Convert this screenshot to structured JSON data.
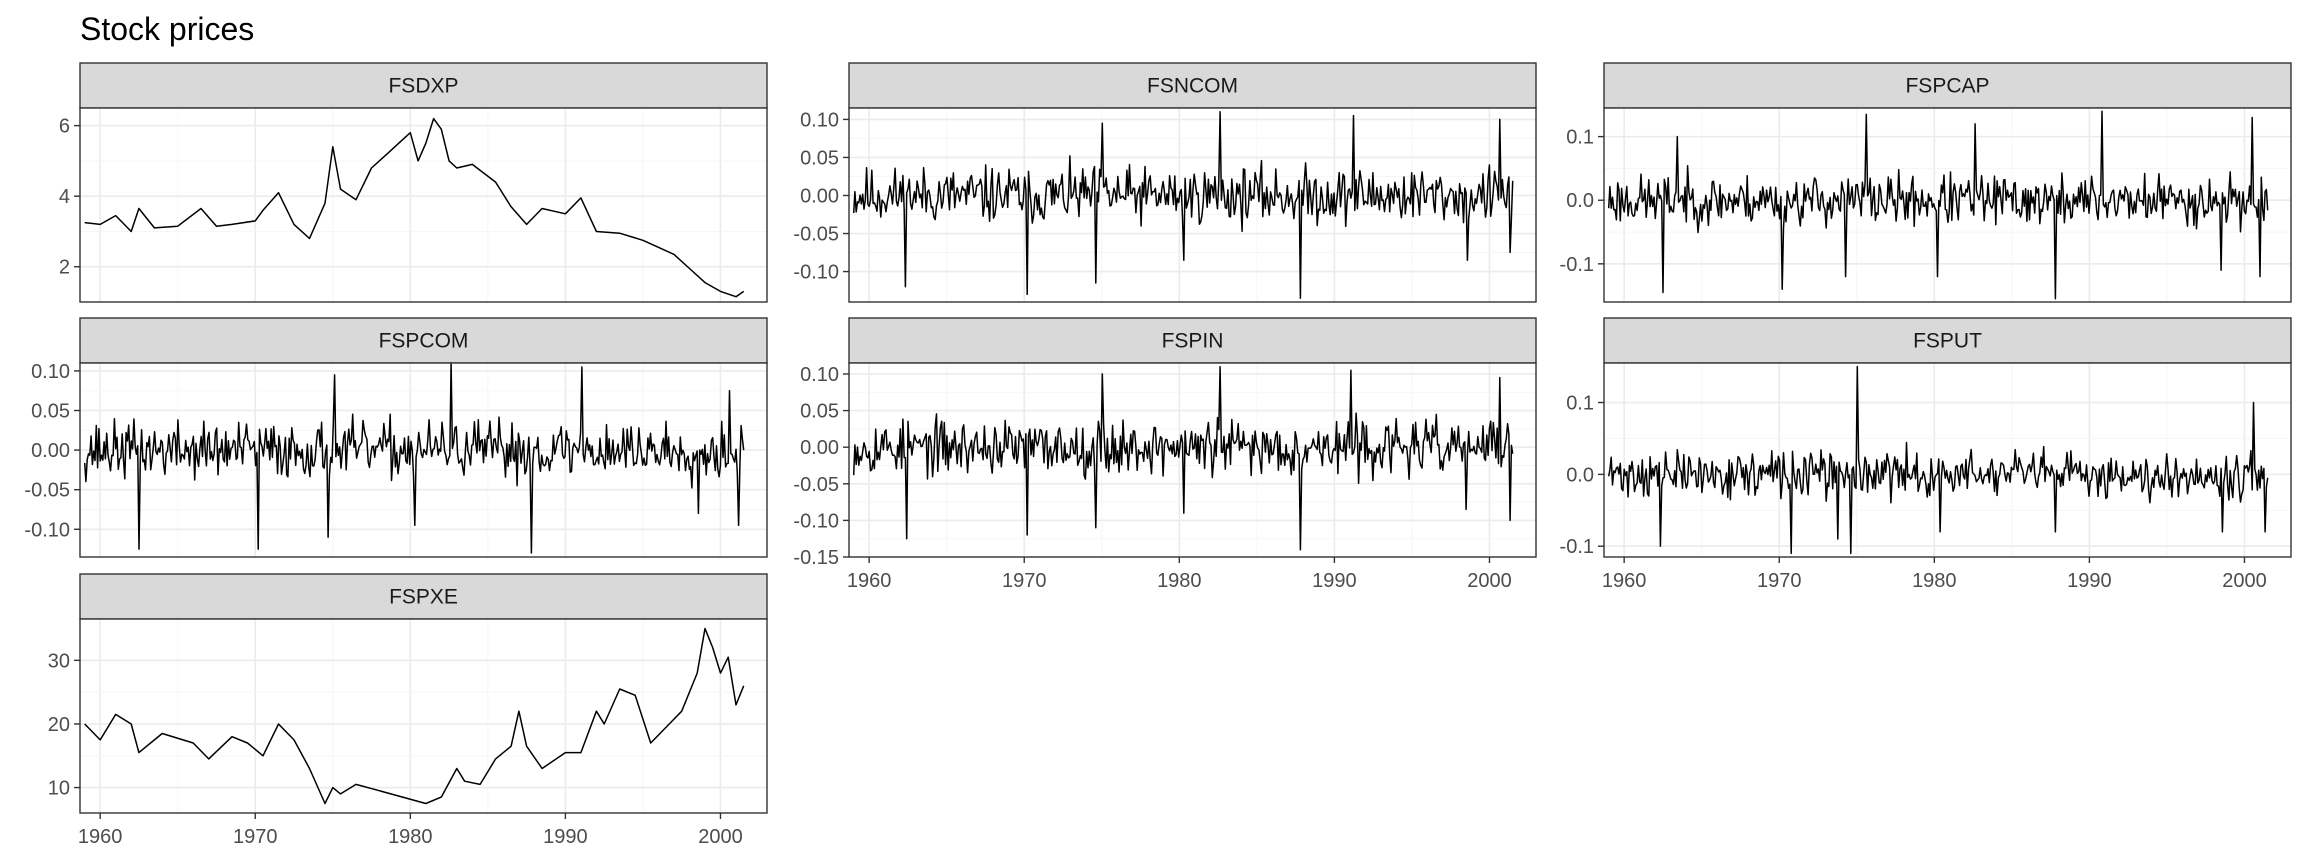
{
  "chart_data": {
    "type": "line",
    "title": "Stock prices",
    "xlabel": "",
    "ylabel": "",
    "grid": true,
    "legend": "none",
    "x_unit": "year",
    "xlim": [
      1958.7,
      2003.0
    ],
    "x_ticks": [
      "1960",
      "1970",
      "1980",
      "1990",
      "2000"
    ],
    "panels": [
      {
        "name": "FSDXP",
        "ylim": [
          1.0,
          6.5
        ],
        "y_ticks": [
          "2",
          "4",
          "6"
        ],
        "x": [
          1959.0,
          1960.0,
          1961.0,
          1962.0,
          1962.5,
          1963.5,
          1965.0,
          1966.5,
          1967.5,
          1968.5,
          1970.0,
          1970.5,
          1971.5,
          1972.5,
          1973.5,
          1974.5,
          1975.0,
          1975.5,
          1976.5,
          1977.5,
          1978.5,
          1979.5,
          1980.0,
          1980.5,
          1981.0,
          1981.5,
          1982.0,
          1982.5,
          1983.0,
          1984.0,
          1985.5,
          1986.5,
          1987.5,
          1988.5,
          1990.0,
          1991.0,
          1992.0,
          1993.5,
          1995.0,
          1996.0,
          1997.0,
          1998.0,
          1999.0,
          2000.0,
          2001.0,
          2001.5
        ],
        "values": [
          3.25,
          3.2,
          3.45,
          3.0,
          3.65,
          3.1,
          3.15,
          3.65,
          3.15,
          3.2,
          3.3,
          3.6,
          4.1,
          3.2,
          2.8,
          3.8,
          5.4,
          4.2,
          3.9,
          4.8,
          5.2,
          5.6,
          5.8,
          5.0,
          5.5,
          6.2,
          5.9,
          5.0,
          4.8,
          4.9,
          4.4,
          3.7,
          3.2,
          3.65,
          3.5,
          3.95,
          3.0,
          2.95,
          2.75,
          2.55,
          2.35,
          1.95,
          1.55,
          1.3,
          1.15,
          1.3
        ]
      },
      {
        "name": "FSNCOM",
        "ylim": [
          -0.14,
          0.115
        ],
        "y_ticks": [
          "0.10",
          "0.05",
          "0.00",
          "-0.05",
          "-0.10"
        ],
        "x_range": [
          1959.0,
          2001.5
        ],
        "seed": 11,
        "amp": 0.028,
        "y_min": -0.135,
        "y_max": 0.11,
        "spikes": [
          [
            1962.3,
            -0.12
          ],
          [
            1970.2,
            -0.13
          ],
          [
            1974.6,
            -0.115
          ],
          [
            1975.0,
            0.095
          ],
          [
            1980.3,
            -0.085
          ],
          [
            1982.6,
            0.11
          ],
          [
            1987.8,
            -0.135
          ],
          [
            1991.2,
            0.105
          ],
          [
            1998.6,
            -0.085
          ],
          [
            2000.7,
            0.1
          ],
          [
            2001.3,
            -0.075
          ]
        ]
      },
      {
        "name": "FSPCAP",
        "ylim": [
          -0.16,
          0.145
        ],
        "y_ticks": [
          "0.1",
          "0.0",
          "-0.1"
        ],
        "x_range": [
          1959.0,
          2001.5
        ],
        "seed": 23,
        "amp": 0.03,
        "y_min": -0.155,
        "y_max": 0.145,
        "spikes": [
          [
            1962.5,
            -0.145
          ],
          [
            1963.4,
            0.1
          ],
          [
            1970.2,
            -0.14
          ],
          [
            1974.3,
            -0.12
          ],
          [
            1975.6,
            0.135
          ],
          [
            1980.2,
            -0.12
          ],
          [
            1982.6,
            0.12
          ],
          [
            1987.8,
            -0.155
          ],
          [
            1990.8,
            0.14
          ],
          [
            1998.5,
            -0.11
          ],
          [
            2000.5,
            0.13
          ],
          [
            2001.0,
            -0.12
          ]
        ]
      },
      {
        "name": "FSPCOM",
        "ylim": [
          -0.135,
          0.11
        ],
        "y_ticks": [
          "0.10",
          "0.05",
          "0.00",
          "-0.05",
          "-0.10"
        ],
        "x_range": [
          1959.0,
          2001.5
        ],
        "seed": 37,
        "amp": 0.027,
        "y_min": -0.13,
        "y_max": 0.11,
        "spikes": [
          [
            1962.5,
            -0.125
          ],
          [
            1970.2,
            -0.125
          ],
          [
            1974.7,
            -0.11
          ],
          [
            1975.1,
            0.095
          ],
          [
            1980.3,
            -0.095
          ],
          [
            1982.6,
            0.11
          ],
          [
            1987.8,
            -0.13
          ],
          [
            1991.1,
            0.105
          ],
          [
            1998.6,
            -0.08
          ],
          [
            2000.6,
            0.075
          ],
          [
            2001.2,
            -0.095
          ]
        ]
      },
      {
        "name": "FSPIN",
        "ylim": [
          -0.15,
          0.115
        ],
        "y_ticks": [
          "0.10",
          "0.05",
          "0.00",
          "-0.05",
          "-0.10",
          "-0.15"
        ],
        "x_range": [
          1959.0,
          2001.5
        ],
        "seed": 53,
        "amp": 0.028,
        "y_min": -0.145,
        "y_max": 0.11,
        "spikes": [
          [
            1962.4,
            -0.125
          ],
          [
            1970.2,
            -0.12
          ],
          [
            1974.6,
            -0.11
          ],
          [
            1975.0,
            0.1
          ],
          [
            1980.3,
            -0.09
          ],
          [
            1982.6,
            0.11
          ],
          [
            1987.8,
            -0.14
          ],
          [
            1991.1,
            0.105
          ],
          [
            1998.5,
            -0.085
          ],
          [
            2000.7,
            0.095
          ],
          [
            2001.3,
            -0.1
          ]
        ]
      },
      {
        "name": "FSPUT",
        "ylim": [
          -0.115,
          0.155
        ],
        "y_ticks": [
          "0.1",
          "0.0",
          "-0.1"
        ],
        "x_range": [
          1959.0,
          2001.5
        ],
        "seed": 71,
        "amp": 0.024,
        "y_min": -0.11,
        "y_max": 0.15,
        "spikes": [
          [
            1962.3,
            -0.1
          ],
          [
            1970.8,
            -0.11
          ],
          [
            1973.8,
            -0.09
          ],
          [
            1974.6,
            -0.11
          ],
          [
            1975.0,
            0.15
          ],
          [
            1980.4,
            -0.08
          ],
          [
            1987.8,
            -0.08
          ],
          [
            1998.6,
            -0.08
          ],
          [
            2000.6,
            0.1
          ],
          [
            2001.3,
            -0.08
          ]
        ]
      },
      {
        "name": "FSPXE",
        "ylim": [
          6.0,
          36.5
        ],
        "y_ticks": [
          "30",
          "20",
          "10"
        ],
        "x": [
          1959.0,
          1960.0,
          1961.0,
          1962.0,
          1962.5,
          1964.0,
          1966.0,
          1967.0,
          1968.5,
          1969.5,
          1970.5,
          1971.5,
          1972.5,
          1973.5,
          1974.5,
          1975.0,
          1975.5,
          1976.5,
          1978.0,
          1979.5,
          1981.0,
          1982.0,
          1983.0,
          1983.5,
          1984.5,
          1985.5,
          1986.5,
          1987.0,
          1987.5,
          1988.5,
          1990.0,
          1991.0,
          1992.0,
          1992.5,
          1993.5,
          1994.5,
          1995.5,
          1996.5,
          1997.5,
          1998.5,
          1999.0,
          1999.5,
          2000.0,
          2000.5,
          2001.0,
          2001.5
        ],
        "values": [
          20.0,
          17.5,
          21.5,
          20.0,
          15.5,
          18.5,
          17.0,
          14.5,
          18.0,
          17.0,
          15.0,
          20.0,
          17.5,
          13.0,
          7.5,
          10.0,
          9.0,
          10.5,
          9.5,
          8.5,
          7.5,
          8.5,
          13.0,
          11.0,
          10.5,
          14.5,
          16.5,
          22.0,
          16.5,
          13.0,
          15.5,
          15.5,
          22.0,
          20.0,
          25.5,
          24.5,
          17.0,
          19.5,
          22.0,
          28.0,
          35.0,
          32.0,
          28.0,
          30.5,
          23.0,
          26.0
        ]
      }
    ]
  }
}
